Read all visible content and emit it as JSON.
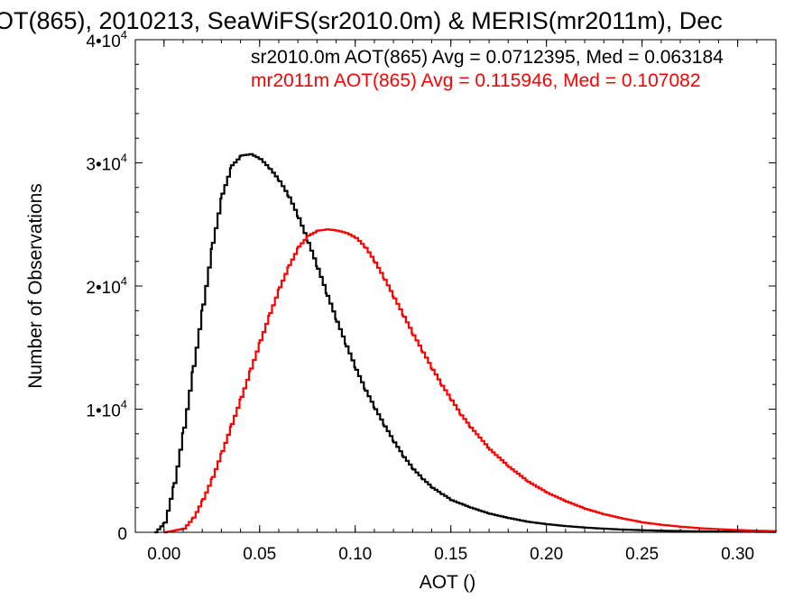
{
  "chart_data": {
    "type": "line",
    "title": "OT(865), 2010213, SeaWiFS(sr2010.0m) & MERIS(mr2011m), Dec",
    "xlabel": "AOT ()",
    "ylabel": "Number of Observations",
    "xlim": [
      -0.015,
      0.32
    ],
    "ylim": [
      0,
      40000
    ],
    "x_ticks": [
      0.0,
      0.05,
      0.1,
      0.15,
      0.2,
      0.25,
      0.3
    ],
    "x_tick_labels": [
      "0.00",
      "0.05",
      "0.10",
      "0.15",
      "0.20",
      "0.25",
      "0.30"
    ],
    "y_ticks": [
      0,
      10000,
      20000,
      30000,
      40000
    ],
    "y_tick_labels": [
      {
        "base": "0",
        "exp": ""
      },
      {
        "base": "1•10",
        "exp": "4"
      },
      {
        "base": "2•10",
        "exp": "4"
      },
      {
        "base": "3•10",
        "exp": "4"
      },
      {
        "base": "4•10",
        "exp": "4"
      }
    ],
    "grid": false,
    "step": true,
    "annotations": [
      {
        "text": "sr2010.0m AOT(865) Avg = 0.0712395, Med = 0.063184",
        "color": "#000000"
      },
      {
        "text": "mr2011m AOT(865) Avg = 0.115946, Med = 0.107082",
        "color": "#ff0000"
      }
    ],
    "series": [
      {
        "color": "#000000",
        "x": [
          -0.005,
          0.0,
          0.005,
          0.01,
          0.015,
          0.02,
          0.025,
          0.03,
          0.035,
          0.04,
          0.045,
          0.05,
          0.055,
          0.06,
          0.065,
          0.07,
          0.075,
          0.08,
          0.085,
          0.09,
          0.095,
          0.1,
          0.105,
          0.11,
          0.115,
          0.12,
          0.125,
          0.13,
          0.135,
          0.14,
          0.145,
          0.15,
          0.16,
          0.17,
          0.18,
          0.19,
          0.2,
          0.21,
          0.22,
          0.23,
          0.24,
          0.25,
          0.26,
          0.27,
          0.28,
          0.29,
          0.3,
          0.31,
          0.32
        ],
        "y": [
          0,
          800,
          4000,
          8500,
          13500,
          18500,
          23500,
          27500,
          29800,
          30600,
          30700,
          30300,
          29500,
          28500,
          27200,
          25500,
          23500,
          21400,
          19200,
          17100,
          15100,
          13200,
          11500,
          10000,
          8600,
          7300,
          6100,
          5100,
          4300,
          3600,
          3100,
          2600,
          2000,
          1500,
          1150,
          850,
          650,
          500,
          380,
          290,
          220,
          170,
          130,
          100,
          80,
          60,
          50,
          40,
          30
        ]
      },
      {
        "color": "#ff0000",
        "x": [
          0.0,
          0.01,
          0.015,
          0.02,
          0.025,
          0.03,
          0.035,
          0.04,
          0.045,
          0.05,
          0.055,
          0.06,
          0.065,
          0.07,
          0.075,
          0.08,
          0.085,
          0.09,
          0.095,
          0.1,
          0.105,
          0.11,
          0.115,
          0.12,
          0.125,
          0.13,
          0.135,
          0.14,
          0.145,
          0.15,
          0.155,
          0.16,
          0.17,
          0.18,
          0.19,
          0.2,
          0.21,
          0.22,
          0.23,
          0.24,
          0.25,
          0.26,
          0.27,
          0.28,
          0.29,
          0.3,
          0.31,
          0.32
        ],
        "y": [
          0,
          300,
          1200,
          2700,
          4500,
          6600,
          8800,
          11000,
          13300,
          15600,
          17800,
          19900,
          21700,
          23200,
          24100,
          24500,
          24600,
          24500,
          24300,
          23900,
          23100,
          21900,
          20500,
          19000,
          17500,
          16000,
          14600,
          13200,
          11900,
          10700,
          9500,
          8500,
          6700,
          5300,
          4100,
          3200,
          2500,
          1900,
          1450,
          1100,
          800,
          600,
          450,
          330,
          250,
          180,
          130,
          90
        ]
      }
    ]
  }
}
